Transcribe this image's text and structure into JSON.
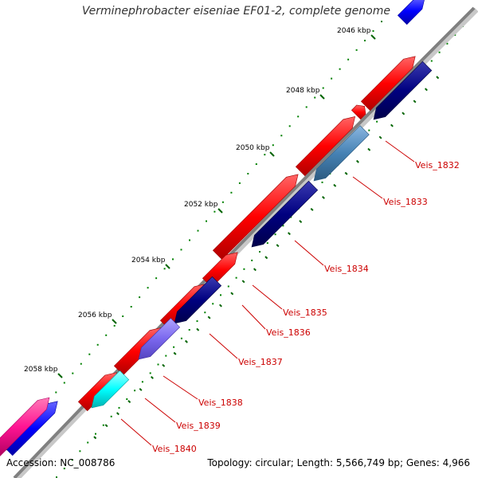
{
  "map": {
    "title": "Verminephrobacter eiseniae EF01-2, complete genome",
    "accession": "Accession: NC_008786",
    "summary": "Topology: circular; Length: 5,566,749 bp; Genes: 4,966",
    "kbp_ticks": [
      "2046 kbp",
      "2048 kbp",
      "2050 kbp",
      "2052 kbp",
      "2054 kbp",
      "2056 kbp",
      "2058 kbp"
    ],
    "genes": [
      {
        "label": "Veis_1832",
        "color": "#000080"
      },
      {
        "label": "Veis_1833",
        "color": "#4682b4"
      },
      {
        "label": "Veis_1834",
        "color": "#000080"
      },
      {
        "label": "Veis_1835",
        "color": "#ff0000"
      },
      {
        "label": "Veis_1836",
        "color": "#ff0000"
      },
      {
        "label": "Veis_1837",
        "color": "#000080"
      },
      {
        "label": "Veis_1838",
        "color": "#7b68ee"
      },
      {
        "label": "Veis_1839",
        "color": "#00ffff"
      },
      {
        "label": "Veis_1840",
        "color": "#ff0000"
      }
    ],
    "colors": {
      "backbone": "#808080",
      "forward_cds": "#ff0000",
      "reverse_cds": "#000080",
      "tick": "#006400",
      "dot": "#008000",
      "label": "#cc0000",
      "blue_gene": "#0000ff",
      "magenta_gene": "#ff1493"
    }
  }
}
